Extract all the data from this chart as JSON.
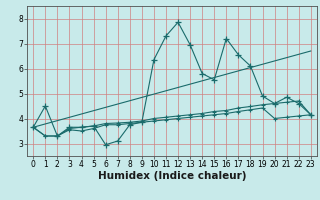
{
  "title": "",
  "xlabel": "Humidex (Indice chaleur)",
  "bg_color": "#c8eaea",
  "line_color": "#1a6b6b",
  "grid_color_h": "#e8b0b0",
  "grid_color_v": "#e8b0b0",
  "xlim": [
    -0.5,
    23.5
  ],
  "ylim": [
    2.5,
    8.5
  ],
  "xticks": [
    0,
    1,
    2,
    3,
    4,
    5,
    6,
    7,
    8,
    9,
    10,
    11,
    12,
    13,
    14,
    15,
    16,
    17,
    18,
    19,
    20,
    21,
    22,
    23
  ],
  "yticks": [
    3,
    4,
    5,
    6,
    7,
    8
  ],
  "line0_x": [
    0,
    1,
    2,
    3,
    4,
    5,
    6,
    7,
    8,
    9,
    10,
    11,
    12,
    13,
    14,
    15,
    16,
    17,
    18,
    19,
    20,
    21,
    22,
    23
  ],
  "line0_y": [
    3.65,
    4.5,
    3.3,
    3.65,
    3.65,
    3.7,
    2.95,
    3.1,
    3.75,
    3.85,
    6.35,
    7.3,
    7.85,
    6.95,
    5.8,
    5.55,
    7.2,
    6.55,
    6.1,
    4.9,
    4.6,
    4.85,
    4.6,
    4.15
  ],
  "line1_x": [
    0,
    1,
    2,
    3,
    4,
    5,
    6,
    7,
    8,
    9,
    10,
    11,
    12,
    13,
    14,
    15,
    16,
    17,
    18,
    19,
    20,
    21,
    22,
    23
  ],
  "line1_y": [
    3.65,
    3.3,
    3.3,
    3.55,
    3.5,
    3.6,
    3.75,
    3.75,
    3.8,
    3.85,
    3.9,
    3.95,
    4.0,
    4.05,
    4.1,
    4.15,
    4.2,
    4.28,
    4.35,
    4.42,
    4.0,
    4.05,
    4.1,
    4.15
  ],
  "line2_x": [
    0,
    1,
    2,
    3,
    4,
    5,
    6,
    7,
    8,
    9,
    10,
    11,
    12,
    13,
    14,
    15,
    16,
    17,
    18,
    19,
    20,
    21,
    22,
    23
  ],
  "line2_y": [
    3.65,
    3.3,
    3.3,
    3.6,
    3.65,
    3.7,
    3.8,
    3.82,
    3.85,
    3.9,
    4.0,
    4.05,
    4.1,
    4.15,
    4.2,
    4.28,
    4.32,
    4.42,
    4.48,
    4.55,
    4.6,
    4.65,
    4.7,
    4.15
  ],
  "line3_x": [
    0,
    23
  ],
  "line3_y": [
    3.65,
    6.7
  ],
  "tick_fontsize": 5.5,
  "label_fontsize": 7.5
}
